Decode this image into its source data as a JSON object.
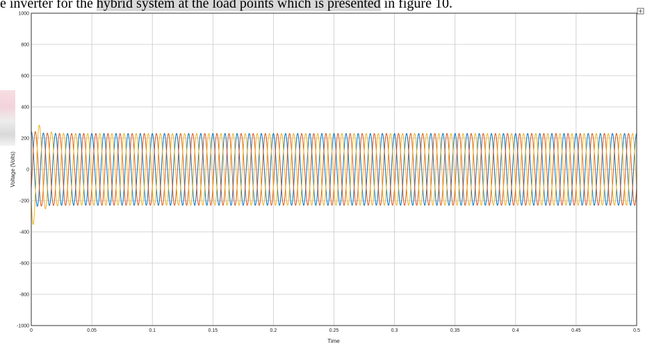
{
  "caption": {
    "before": "e inverter for the ",
    "highlighted": "hybrid system at the load points which is presented",
    "after": " in figure 10."
  },
  "colors": {
    "phase_a": "#0072BD",
    "phase_b": "#D95319",
    "phase_c": "#EDB120",
    "grid": "#c8c8c8",
    "axes": "#333333"
  },
  "chart_data": {
    "type": "line",
    "title": "",
    "xlabel": "Time",
    "ylabel": "Voltage (Volts)",
    "xlim": [
      0,
      0.5
    ],
    "ylim": [
      -1000,
      1000
    ],
    "grid": true,
    "x_ticks": [
      "0",
      "0.05",
      "0.1",
      "0.15",
      "0.2",
      "0.25",
      "0.3",
      "0.35",
      "0.4",
      "0.45",
      "0.5"
    ],
    "y_ticks": [
      "-1000",
      "-800",
      "-600",
      "-400",
      "-200",
      "0",
      "200",
      "400",
      "600",
      "800",
      "1000"
    ],
    "frequency_hz": 100,
    "steady_amplitude": 230,
    "series": [
      {
        "color": "#0072BD",
        "phase_deg": 90,
        "transient_peak": 245
      },
      {
        "color": "#D95319",
        "phase_deg": -30,
        "transient_peak": 250
      },
      {
        "color": "#EDB120",
        "phase_deg": 210,
        "transient_peak": 390
      }
    ]
  }
}
